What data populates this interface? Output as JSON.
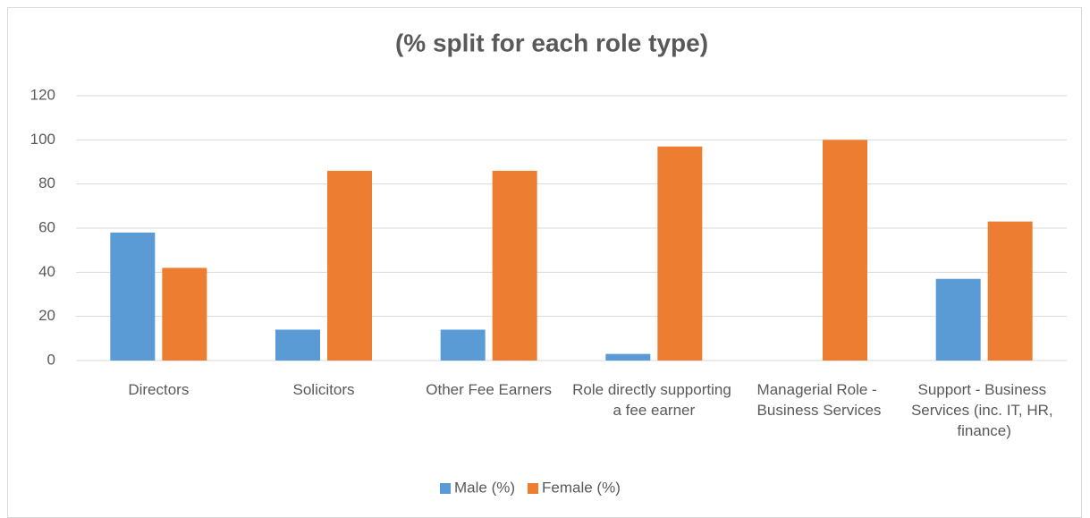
{
  "chart_data": {
    "type": "bar",
    "title": "(% split for each role type)",
    "categories": [
      "Directors",
      "Solicitors",
      "Other Fee Earners",
      "Role directly supporting a fee earner",
      "Managerial Role - Business Services",
      "Support - Business Services (inc. IT, HR, finance)"
    ],
    "series": [
      {
        "name": "Male (%)",
        "color": "#5b9bd5",
        "values": [
          58,
          14,
          14,
          3,
          0,
          37
        ]
      },
      {
        "name": "Female (%)",
        "color": "#ed7d31",
        "values": [
          42,
          86,
          86,
          97,
          100,
          63
        ]
      }
    ],
    "ylim": [
      0,
      120
    ],
    "yticks": [
      0,
      20,
      40,
      60,
      80,
      100,
      120
    ],
    "grid": true,
    "legend": "bottom"
  }
}
